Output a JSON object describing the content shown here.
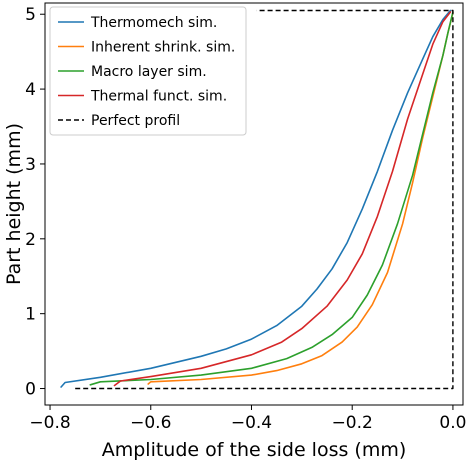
{
  "chart_data": {
    "type": "line",
    "title": "",
    "xlabel": "Amplitude of the side loss (mm)",
    "ylabel": "Part height (mm)",
    "xlim": [
      -0.81,
      0.02
    ],
    "ylim": [
      -0.22,
      5.15
    ],
    "xticks": [
      -0.8,
      -0.6,
      -0.4,
      -0.2,
      0.0
    ],
    "xtick_labels": [
      "−0.8",
      "−0.6",
      "−0.4",
      "−0.2",
      "0.0"
    ],
    "yticks": [
      0,
      1,
      2,
      3,
      4,
      5
    ],
    "ytick_labels": [
      "0",
      "1",
      "2",
      "3",
      "4",
      "5"
    ],
    "grid": false,
    "legend_position": "upper-left",
    "series": [
      {
        "name": "Thermomech sim.",
        "color": "#1f77b4",
        "dash": "solid",
        "x": [
          -0.778,
          -0.77,
          -0.7,
          -0.6,
          -0.5,
          -0.45,
          -0.4,
          -0.35,
          -0.3,
          -0.27,
          -0.24,
          -0.21,
          -0.18,
          -0.15,
          -0.12,
          -0.09,
          -0.06,
          -0.04,
          -0.02,
          -0.005
        ],
        "y": [
          0.02,
          0.08,
          0.15,
          0.27,
          0.43,
          0.53,
          0.66,
          0.84,
          1.1,
          1.33,
          1.6,
          1.95,
          2.4,
          2.9,
          3.45,
          3.95,
          4.4,
          4.7,
          4.93,
          5.05
        ]
      },
      {
        "name": "Inherent shrink. sim.",
        "color": "#ff7f0e",
        "dash": "solid",
        "x": [
          -0.605,
          -0.6,
          -0.5,
          -0.4,
          -0.35,
          -0.3,
          -0.26,
          -0.22,
          -0.19,
          -0.16,
          -0.13,
          -0.1,
          -0.08,
          -0.06,
          -0.04,
          -0.02,
          -0.01,
          0.0
        ],
        "y": [
          0.06,
          0.09,
          0.12,
          0.18,
          0.24,
          0.33,
          0.44,
          0.62,
          0.82,
          1.12,
          1.55,
          2.2,
          2.75,
          3.35,
          3.9,
          4.45,
          4.75,
          5.02
        ]
      },
      {
        "name": "Macro layer sim.",
        "color": "#2ca02c",
        "dash": "solid",
        "x": [
          -0.72,
          -0.7,
          -0.6,
          -0.5,
          -0.4,
          -0.33,
          -0.28,
          -0.24,
          -0.2,
          -0.17,
          -0.14,
          -0.11,
          -0.08,
          -0.06,
          -0.04,
          -0.02,
          -0.01,
          0.0
        ],
        "y": [
          0.05,
          0.09,
          0.12,
          0.18,
          0.27,
          0.4,
          0.55,
          0.72,
          0.95,
          1.25,
          1.65,
          2.2,
          2.85,
          3.4,
          3.95,
          4.45,
          4.75,
          5.03
        ]
      },
      {
        "name": "Thermal funct. sim.",
        "color": "#d62728",
        "dash": "solid",
        "x": [
          -0.672,
          -0.66,
          -0.6,
          -0.5,
          -0.4,
          -0.34,
          -0.3,
          -0.25,
          -0.21,
          -0.18,
          -0.15,
          -0.12,
          -0.09,
          -0.06,
          -0.04,
          -0.02,
          -0.005
        ],
        "y": [
          0.04,
          0.1,
          0.16,
          0.27,
          0.45,
          0.62,
          0.8,
          1.1,
          1.45,
          1.8,
          2.3,
          2.9,
          3.6,
          4.2,
          4.6,
          4.9,
          5.03
        ]
      },
      {
        "name": "Perfect profil",
        "color": "#000000",
        "dash": "dashed",
        "x": [
          -0.75,
          0.0,
          0.0,
          -0.39
        ],
        "y": [
          0.0,
          0.0,
          5.05,
          5.05
        ]
      }
    ]
  }
}
